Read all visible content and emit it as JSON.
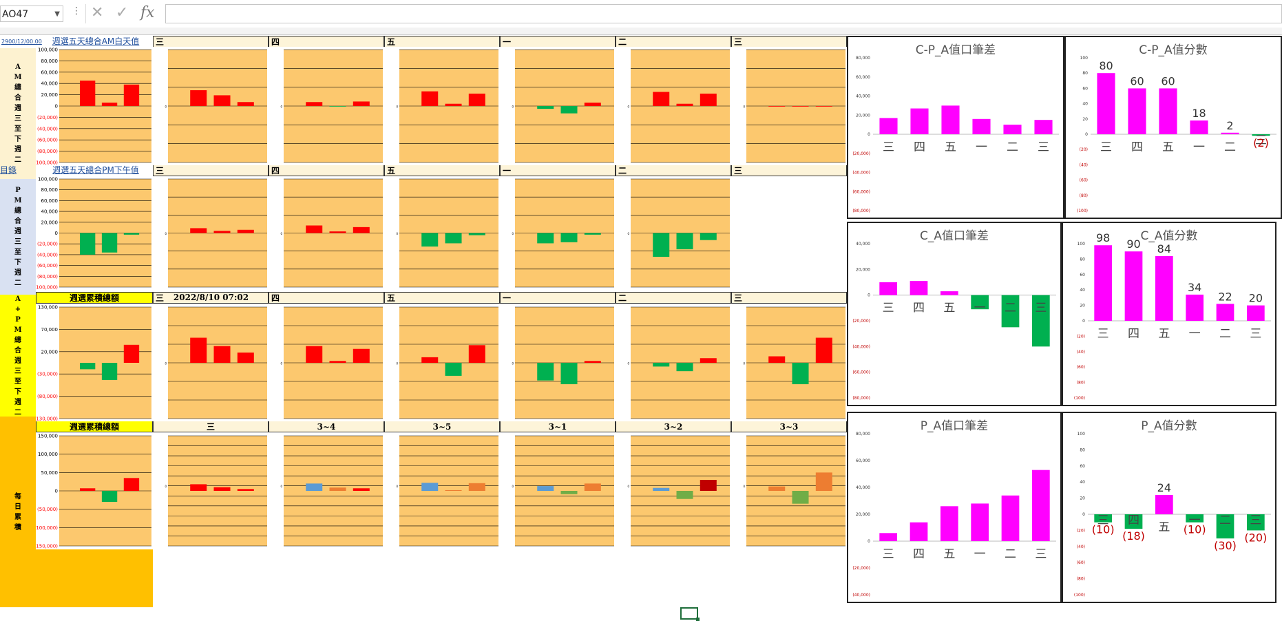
{
  "formula_bar": {
    "name_box": "AO47",
    "cancel_icon": "✕",
    "enter_icon": "✓",
    "fx_label": "fx",
    "formula": ""
  },
  "colors": {
    "plot_bg": "#fcc86e",
    "pos": "#ff0000",
    "neg": "#00b050",
    "magenta": "#ff00ff",
    "blue": "#5b9bd5",
    "orange": "#ed7d31",
    "lightgreen": "#70ad47",
    "darkred": "#c00000",
    "yellow": "#ffff00",
    "left_band_am": "#fdf2d0",
    "left_band_pm": "#d9e1f2",
    "left_band_yellow": "#ffff00",
    "left_band_orange": "#ffc000"
  },
  "left_labels": {
    "am": "AM總合週三至下週二",
    "pm": "PM總合週三至下週二",
    "apm": "A+PM總合週三至下週二",
    "daily": "每日累積"
  },
  "links": {
    "date_link": "2900/12/00.00",
    "catalog": "目錄"
  },
  "row_headers": {
    "am_title": "週選五天總合AM白天值",
    "pm_title": "週選五天總合PM下午值",
    "apm_title": "週選累積總額",
    "daily_title": "週選累積總額",
    "day_cols": [
      "三",
      "四",
      "五",
      "一",
      "二",
      "三"
    ],
    "apm_datetime": "2022/8/10 07:02",
    "daily_cols": [
      "三",
      "3~4",
      "3~5",
      "3~1",
      "3~2",
      "3~3"
    ]
  },
  "mini_axes": {
    "am_first": [
      "100,000",
      "80,000",
      "60,000",
      "40,000",
      "20,000",
      "0",
      "(20,000)",
      "(40,000)",
      "(60,000)",
      "(80,000)",
      "(100,000)"
    ],
    "pm_first": [
      "100,000",
      "80,000",
      "60,000",
      "40,000",
      "20,000",
      "0",
      "(20,000)",
      "(40,000)",
      "(60,000)",
      "(80,000)",
      "(100,000)"
    ],
    "apm_first": [
      "130,000",
      "70,000",
      "20,000",
      "(30,000)",
      "(80,000)",
      "(130,000)"
    ],
    "daily_first": [
      "150,000",
      "100,000",
      "50,000",
      "0",
      "(50,000)",
      "(100,000)",
      "(150,000)"
    ]
  },
  "chart_data": [
    {
      "type": "bar",
      "title": "",
      "categories": [
        "",
        "",
        ""
      ],
      "values": [
        45000,
        6000,
        38000
      ],
      "ylim": [
        -100000,
        100000
      ]
    },
    {
      "type": "bar",
      "title": "C-P_A值口筆差",
      "categories": [
        "三",
        "四",
        "五",
        "一",
        "二",
        "三"
      ],
      "values": [
        17000,
        27000,
        30000,
        16000,
        10000,
        15000
      ],
      "ylim": [
        -80000,
        80000
      ],
      "yticks": [
        "80,000",
        "60,000",
        "40,000",
        "20,000",
        "0",
        "(20,000)",
        "(40,000)",
        "(60,000)",
        "(80,000)"
      ]
    },
    {
      "type": "bar",
      "title": "C-P_A值分數",
      "categories": [
        "三",
        "四",
        "五",
        "一",
        "二",
        "三"
      ],
      "values": [
        80,
        60,
        60,
        18,
        2,
        -2
      ],
      "data_labels": [
        "80",
        "60",
        "60",
        "18",
        "2",
        "(2)"
      ],
      "ylim": [
        -100,
        100
      ],
      "yticks": [
        "100",
        "80",
        "60",
        "40",
        "20",
        "0",
        "(20)",
        "(40)",
        "(60)",
        "(80)",
        "(100)"
      ]
    },
    {
      "type": "bar",
      "title": "C_A值口筆差",
      "categories": [
        "三",
        "四",
        "五",
        "一",
        "二",
        "三"
      ],
      "values": [
        10000,
        11000,
        3000,
        -11000,
        -25000,
        -40000
      ],
      "ylim": [
        -80000,
        40000
      ],
      "yticks": [
        "40,000",
        "20,000",
        "0",
        "(20,000)",
        "(40,000)",
        "(60,000)",
        "(80,000)"
      ]
    },
    {
      "type": "bar",
      "title": "C_A值分數",
      "categories": [
        "三",
        "四",
        "五",
        "一",
        "二",
        "三"
      ],
      "values": [
        98,
        90,
        84,
        34,
        22,
        20
      ],
      "data_labels": [
        "98",
        "90",
        "84",
        "34",
        "22",
        "20"
      ],
      "ylim": [
        -100,
        100
      ],
      "yticks": [
        "100",
        "80",
        "60",
        "40",
        "20",
        "0",
        "(20)",
        "(40)",
        "(60)",
        "(80)",
        "(100)"
      ]
    },
    {
      "type": "bar",
      "title": "P_A值口筆差",
      "categories": [
        "三",
        "四",
        "五",
        "一",
        "二",
        "三"
      ],
      "values": [
        6000,
        14000,
        26000,
        28000,
        34000,
        53000
      ],
      "ylim": [
        -40000,
        80000
      ],
      "yticks": [
        "80,000",
        "60,000",
        "40,000",
        "20,000",
        "0",
        "(20,000)",
        "(40,000)"
      ]
    },
    {
      "type": "bar",
      "title": "P_A值分數",
      "categories": [
        "三",
        "四",
        "五",
        "一",
        "二",
        "三"
      ],
      "values": [
        -10,
        -18,
        24,
        -10,
        -30,
        -20
      ],
      "data_labels": [
        "(10)",
        "(18)",
        "24",
        "(10)",
        "(30)",
        "(20)"
      ],
      "ylim": [
        -100,
        100
      ],
      "yticks": [
        "100",
        "80",
        "60",
        "40",
        "20",
        "0",
        "(20)",
        "(40)",
        "(60)",
        "(80)",
        "(100)"
      ]
    }
  ],
  "mini_charts": {
    "am": [
      [
        45000,
        6000,
        38000
      ],
      [
        28000,
        19000,
        7000
      ],
      [
        7000,
        -1000,
        8000
      ],
      [
        26000,
        4000,
        22000
      ],
      [
        -5000,
        -13000,
        6000
      ],
      [
        25000,
        4000,
        22000
      ],
      [
        0,
        0,
        0
      ]
    ],
    "pm": [
      [
        -40000,
        -36000,
        -3000
      ],
      [
        9000,
        4000,
        6000
      ],
      [
        14000,
        3000,
        11000
      ],
      [
        -25000,
        -19000,
        -4000
      ],
      [
        -19000,
        -17000,
        -3000
      ],
      [
        -44000,
        -30000,
        -13000
      ]
    ],
    "apm": [
      [
        -15000,
        -40000,
        42000
      ],
      [
        27000,
        18000,
        11000
      ],
      [
        18000,
        2000,
        15000
      ],
      [
        6000,
        -14000,
        19000
      ],
      [
        -19000,
        -23000,
        2000
      ],
      [
        -4000,
        -9000,
        5000
      ],
      [
        7000,
        -23000,
        27000
      ]
    ],
    "daily": [
      [
        7000,
        -30000,
        35000
      ],
      [
        18000,
        10000,
        5000
      ],
      [
        20000,
        9000,
        7000
      ],
      [
        22000,
        2000,
        21000
      ],
      [
        13000,
        -9000,
        20000
      ],
      [
        8000,
        -22000,
        30000
      ],
      [
        12000,
        -35000,
        50000
      ]
    ]
  }
}
